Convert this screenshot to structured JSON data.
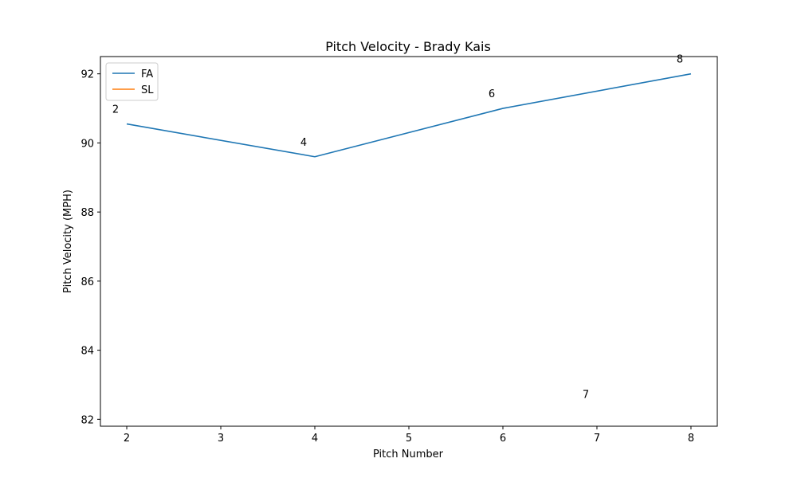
{
  "chart_data": {
    "type": "line",
    "title": "Pitch Velocity - Brady Kais",
    "xlabel": "Pitch Number",
    "ylabel": "Pitch Velocity (MPH)",
    "xlim": [
      1.72,
      8.28
    ],
    "ylim": [
      81.8,
      92.5
    ],
    "x_ticks": [
      2,
      3,
      4,
      5,
      6,
      7,
      8
    ],
    "y_ticks": [
      82,
      84,
      86,
      88,
      90,
      92
    ],
    "series": [
      {
        "name": "FA",
        "color": "#1f77b4",
        "x": [
          2,
          4,
          6,
          8
        ],
        "y": [
          90.55,
          89.6,
          91.0,
          92.0
        ]
      },
      {
        "name": "SL",
        "color": "#ff7f0e",
        "x": [
          7
        ],
        "y": [
          82.3
        ]
      }
    ],
    "point_labels": [
      {
        "text": "2",
        "x": 2,
        "y": 90.55
      },
      {
        "text": "4",
        "x": 4,
        "y": 89.6
      },
      {
        "text": "6",
        "x": 6,
        "y": 91.0
      },
      {
        "text": "7",
        "x": 7,
        "y": 82.3
      },
      {
        "text": "8",
        "x": 8,
        "y": 92.0
      }
    ],
    "legend": {
      "position": "top-left",
      "entries": [
        "FA",
        "SL"
      ]
    },
    "grid": false
  }
}
